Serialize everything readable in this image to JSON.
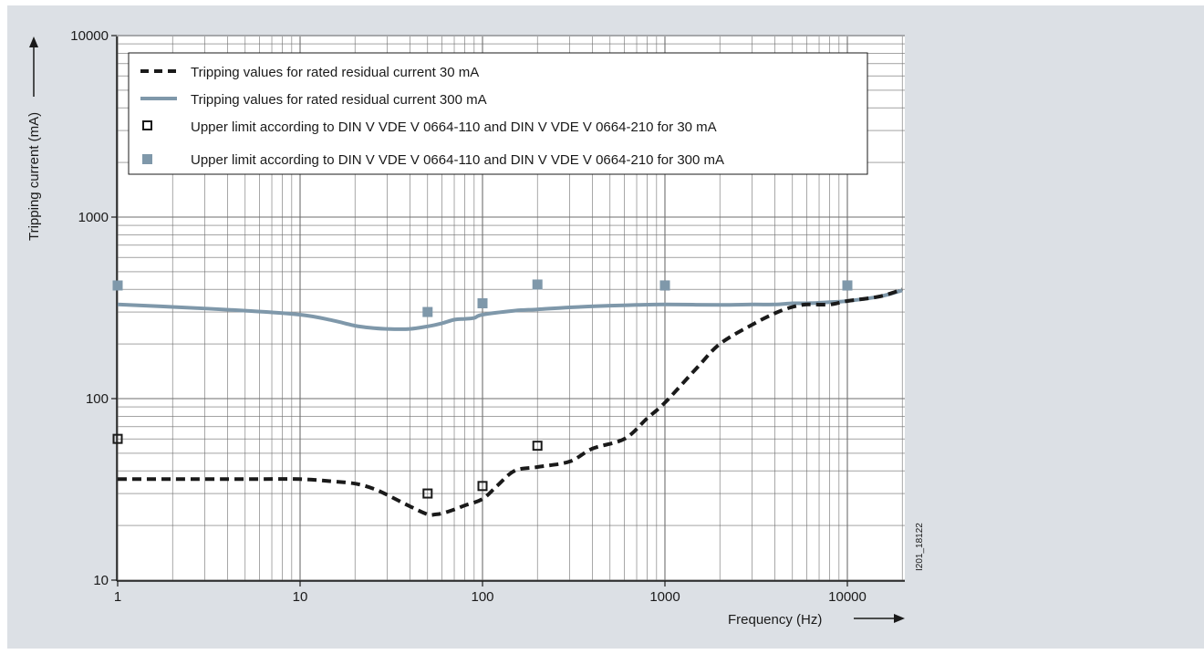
{
  "chart_data": {
    "type": "line",
    "title": "",
    "xlabel": "Frequency (Hz)",
    "ylabel": "Tripping current (mA)",
    "xscale": "log",
    "yscale": "log",
    "xlim": [
      1,
      20000
    ],
    "ylim": [
      10,
      10000
    ],
    "grid": true,
    "legend_position": "top-left",
    "x_ticks": [
      1,
      10,
      100,
      1000,
      10000
    ],
    "x_tick_labels": [
      "1",
      "10",
      "100",
      "1000",
      "10000"
    ],
    "y_ticks": [
      10,
      100,
      1000,
      10000
    ],
    "y_tick_labels": [
      "10",
      "100",
      "1000",
      "10000"
    ],
    "code": "I201_18122",
    "series": [
      {
        "name": "Tripping values for rated residual current 30 mA",
        "style": "dashed-line",
        "color": "#1a1a1a",
        "x": [
          1,
          2,
          5,
          10,
          15,
          20,
          25,
          30,
          40,
          50,
          55,
          60,
          70,
          80,
          100,
          120,
          150,
          200,
          300,
          400,
          600,
          800,
          1000,
          1500,
          2000,
          3000,
          4000,
          5000,
          6000,
          8000,
          10000,
          15000,
          20000
        ],
        "y": [
          36,
          36,
          36,
          36,
          35,
          34,
          32,
          29.5,
          25.5,
          23,
          23,
          23.3,
          24.5,
          25.8,
          28,
          33,
          40,
          42,
          45,
          53,
          60,
          78,
          95,
          148,
          200,
          255,
          295,
          320,
          330,
          330,
          345,
          365,
          400
        ]
      },
      {
        "name": "Tripping values for rated residual current 300 mA",
        "style": "solid-line",
        "color": "#7f98aa",
        "x": [
          1,
          2,
          5,
          10,
          15,
          20,
          25,
          30,
          40,
          50,
          60,
          70,
          80,
          90,
          100,
          150,
          200,
          300,
          500,
          700,
          1000,
          2000,
          3000,
          4000,
          5000,
          6000,
          8000,
          10000,
          15000,
          20000
        ],
        "y": [
          330,
          320,
          305,
          290,
          270,
          252,
          245,
          242,
          242,
          250,
          260,
          272,
          275,
          278,
          290,
          305,
          310,
          318,
          325,
          328,
          330,
          328,
          330,
          330,
          335,
          335,
          340,
          345,
          365,
          395
        ]
      },
      {
        "name": "Upper limit according to DIN V VDE V 0664-110 and DIN V VDE V 0664-210 for 30 mA",
        "style": "open-square",
        "color": "#1a1a1a",
        "x": [
          1,
          50,
          100,
          200,
          1000,
          10000
        ],
        "y": [
          60,
          30,
          33,
          55,
          420,
          420
        ]
      },
      {
        "name": "Upper limit according to DIN V VDE V 0664-110 and DIN V VDE V 0664-210 for 300 mA",
        "style": "filled-square",
        "color": "#7f98aa",
        "x": [
          1,
          50,
          100,
          200,
          1000,
          10000
        ],
        "y": [
          420,
          300,
          335,
          425,
          420,
          420
        ]
      }
    ]
  }
}
